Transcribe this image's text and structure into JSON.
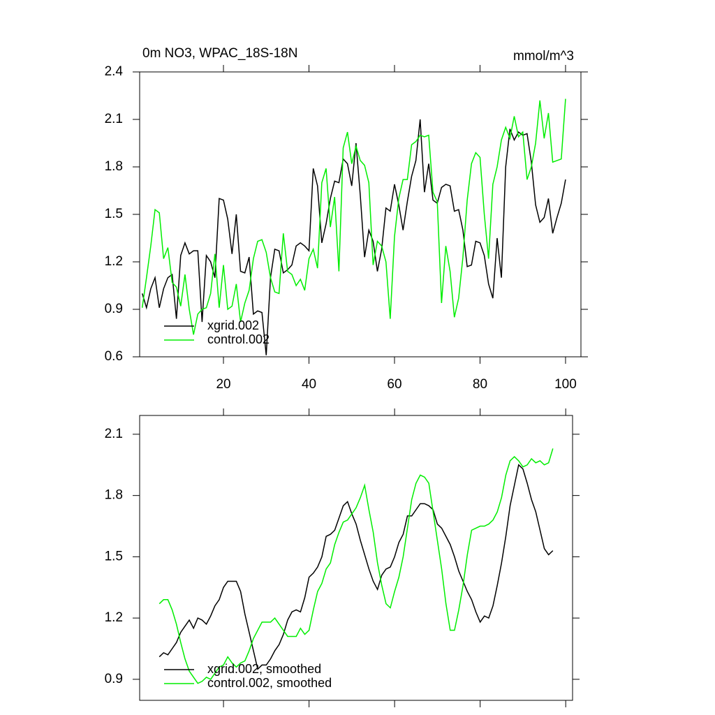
{
  "chart_data": [
    {
      "type": "line",
      "title": "0m NO3, WPAC_18S-18N",
      "right_title": "mmol/m^3",
      "x": [
        1,
        2,
        3,
        4,
        5,
        6,
        7,
        8,
        9,
        10,
        11,
        12,
        13,
        14,
        15,
        16,
        17,
        18,
        19,
        20,
        21,
        22,
        23,
        24,
        25,
        26,
        27,
        28,
        29,
        30,
        31,
        32,
        33,
        34,
        35,
        36,
        37,
        38,
        39,
        40,
        41,
        42,
        43,
        44,
        45,
        46,
        47,
        48,
        49,
        50,
        51,
        52,
        53,
        54,
        55,
        56,
        57,
        58,
        59,
        60,
        61,
        62,
        63,
        64,
        65,
        66,
        67,
        68,
        69,
        70,
        71,
        72,
        73,
        74,
        75,
        76,
        77,
        78,
        79,
        80,
        81,
        82,
        83,
        84,
        85,
        86,
        87,
        88,
        89,
        90,
        91,
        92,
        93,
        94,
        95,
        96,
        97,
        98,
        99,
        100
      ],
      "series": [
        {
          "name": "xgrid.002",
          "color": "#000000",
          "values": [
            1.0,
            0.91,
            1.03,
            1.1,
            0.91,
            1.03,
            1.1,
            1.12,
            0.84,
            1.24,
            1.32,
            1.25,
            1.27,
            1.27,
            0.82,
            1.24,
            1.2,
            1.1,
            1.6,
            1.59,
            1.47,
            1.25,
            1.5,
            1.14,
            1.13,
            1.23,
            0.87,
            0.89,
            0.88,
            0.61,
            1.1,
            1.28,
            1.27,
            1.13,
            1.15,
            1.18,
            1.3,
            1.32,
            1.3,
            1.27,
            1.79,
            1.68,
            1.32,
            1.44,
            1.6,
            1.71,
            1.7,
            1.85,
            1.82,
            1.68,
            1.95,
            1.62,
            1.23,
            1.4,
            1.33,
            1.14,
            1.28,
            1.54,
            1.52,
            1.69,
            1.56,
            1.4,
            1.58,
            1.74,
            1.84,
            2.1,
            1.64,
            1.82,
            1.59,
            1.57,
            1.67,
            1.69,
            1.68,
            1.52,
            1.53,
            1.4,
            1.17,
            1.18,
            1.33,
            1.32,
            1.24,
            1.06,
            0.97,
            1.35,
            1.1,
            1.8,
            2.04,
            1.97,
            2.02,
            2.0,
            2.01,
            1.83,
            1.56,
            1.45,
            1.48,
            1.6,
            1.38,
            1.48,
            1.57,
            1.72
          ]
        },
        {
          "name": "control.002",
          "color": "#00ee00",
          "values": [
            0.91,
            1.1,
            1.3,
            1.53,
            1.51,
            1.22,
            1.29,
            1.07,
            1.04,
            0.92,
            1.12,
            0.9,
            0.74,
            0.87,
            0.9,
            0.91,
            1.0,
            1.25,
            0.91,
            1.18,
            0.9,
            0.92,
            1.06,
            0.82,
            0.94,
            1.02,
            1.22,
            1.33,
            1.34,
            1.26,
            1.1,
            1.01,
            1.0,
            1.38,
            1.14,
            1.12,
            1.05,
            1.09,
            1.02,
            1.22,
            1.28,
            1.16,
            1.7,
            1.79,
            1.42,
            1.61,
            1.14,
            1.92,
            2.02,
            1.82,
            1.93,
            1.84,
            1.81,
            1.7,
            1.18,
            1.33,
            1.3,
            1.2,
            0.84,
            1.36,
            1.6,
            1.72,
            1.72,
            1.94,
            1.96,
            2.0,
            1.99,
            2.0,
            1.64,
            1.58,
            0.94,
            1.3,
            1.14,
            0.85,
            0.97,
            1.23,
            1.59,
            1.82,
            1.89,
            1.86,
            1.5,
            1.22,
            1.69,
            1.8,
            1.97,
            2.05,
            1.98,
            2.12,
            1.99,
            2.02,
            1.72,
            1.8,
            1.95,
            2.22,
            1.98,
            2.14,
            1.83,
            1.84,
            1.85,
            2.23
          ]
        }
      ],
      "xlim": [
        0.4,
        103.6
      ],
      "xticks": [
        20,
        40,
        60,
        80,
        100
      ],
      "ylim": [
        0.6,
        2.4
      ],
      "yticks": [
        0.6,
        0.9,
        1.2,
        1.5,
        1.8,
        2.1,
        2.4
      ],
      "legend": "lower left"
    },
    {
      "type": "line",
      "x": [
        5,
        6,
        7,
        8,
        9,
        10,
        11,
        12,
        13,
        14,
        15,
        16,
        17,
        18,
        19,
        20,
        21,
        22,
        23,
        24,
        25,
        26,
        27,
        28,
        29,
        30,
        31,
        32,
        33,
        34,
        35,
        36,
        37,
        38,
        39,
        40,
        41,
        42,
        43,
        44,
        45,
        46,
        47,
        48,
        49,
        50,
        51,
        52,
        53,
        54,
        55,
        56,
        57,
        58,
        59,
        60,
        61,
        62,
        63,
        64,
        65,
        66,
        67,
        68,
        69,
        70,
        71,
        72,
        73,
        74,
        75,
        76,
        77,
        78,
        79,
        80,
        81,
        82,
        83,
        84,
        85,
        86,
        87,
        88,
        89,
        90,
        91,
        92,
        93,
        94,
        95,
        96,
        97
      ],
      "series": [
        {
          "name": "xgrid.002, smoothed",
          "color": "#000000",
          "values": [
            1.01,
            1.03,
            1.02,
            1.05,
            1.08,
            1.13,
            1.16,
            1.19,
            1.15,
            1.2,
            1.19,
            1.17,
            1.21,
            1.26,
            1.29,
            1.35,
            1.38,
            1.38,
            1.38,
            1.33,
            1.22,
            1.13,
            1.04,
            0.95,
            0.97,
            0.97,
            1.0,
            1.04,
            1.07,
            1.12,
            1.19,
            1.23,
            1.24,
            1.23,
            1.3,
            1.4,
            1.42,
            1.45,
            1.5,
            1.6,
            1.61,
            1.63,
            1.69,
            1.75,
            1.77,
            1.71,
            1.66,
            1.58,
            1.51,
            1.44,
            1.38,
            1.34,
            1.41,
            1.44,
            1.45,
            1.5,
            1.57,
            1.61,
            1.7,
            1.7,
            1.73,
            1.76,
            1.76,
            1.75,
            1.73,
            1.66,
            1.64,
            1.6,
            1.56,
            1.5,
            1.43,
            1.38,
            1.33,
            1.29,
            1.23,
            1.18,
            1.21,
            1.2,
            1.26,
            1.36,
            1.47,
            1.6,
            1.75,
            1.85,
            1.95,
            1.93,
            1.86,
            1.78,
            1.72,
            1.63,
            1.54,
            1.51,
            1.53
          ]
        },
        {
          "name": "control.002, smoothed",
          "color": "#00ee00",
          "values": [
            1.27,
            1.29,
            1.29,
            1.24,
            1.17,
            1.08,
            1.0,
            0.94,
            0.91,
            0.88,
            0.89,
            0.91,
            0.9,
            0.93,
            0.96,
            0.97,
            1.01,
            0.98,
            0.96,
            0.98,
            0.99,
            1.04,
            1.1,
            1.14,
            1.18,
            1.18,
            1.18,
            1.2,
            1.17,
            1.14,
            1.11,
            1.11,
            1.11,
            1.15,
            1.12,
            1.14,
            1.24,
            1.33,
            1.37,
            1.44,
            1.47,
            1.56,
            1.62,
            1.67,
            1.68,
            1.71,
            1.74,
            1.79,
            1.85,
            1.73,
            1.62,
            1.47,
            1.36,
            1.27,
            1.25,
            1.33,
            1.4,
            1.5,
            1.64,
            1.78,
            1.86,
            1.9,
            1.89,
            1.86,
            1.72,
            1.58,
            1.44,
            1.27,
            1.14,
            1.14,
            1.24,
            1.36,
            1.51,
            1.63,
            1.64,
            1.65,
            1.65,
            1.66,
            1.68,
            1.72,
            1.79,
            1.9,
            1.97,
            1.99,
            1.97,
            1.94,
            1.95,
            1.98,
            1.96,
            1.97,
            1.95,
            1.96,
            2.03
          ]
        }
      ],
      "xlim": [
        0.4,
        101.6
      ],
      "xticks": [
        20,
        40,
        60,
        80,
        100
      ],
      "ylim": [
        0.797,
        2.192
      ],
      "yticks": [
        0.9,
        1.2,
        1.5,
        1.8,
        2.1
      ],
      "legend": "lower left"
    }
  ]
}
